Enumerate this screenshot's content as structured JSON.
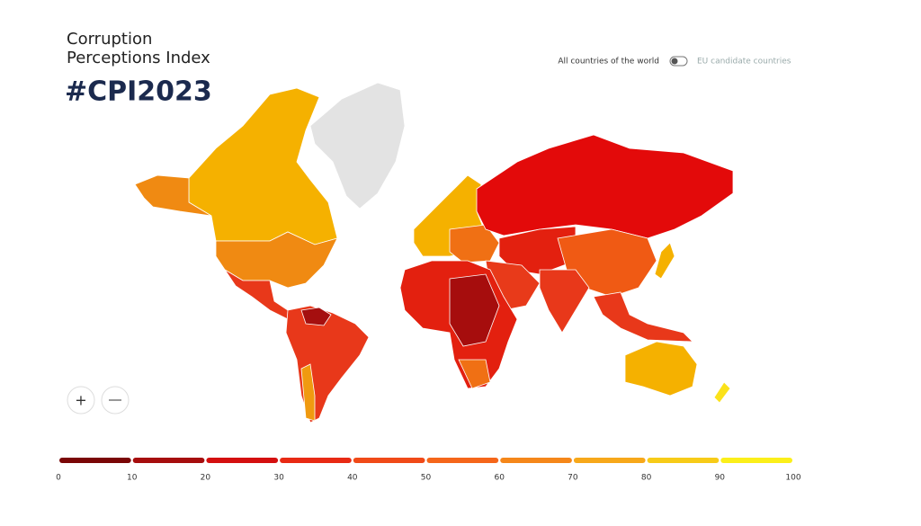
{
  "header": {
    "title_line1": "Corruption",
    "title_line2": "Perceptions Index",
    "logo": "#CPI2023"
  },
  "toggle": {
    "left_label": "All countries of the world",
    "right_label": "EU candidate countries"
  },
  "legend": {
    "ticks": [
      0,
      10,
      20,
      30,
      40,
      50,
      60,
      70,
      80,
      90,
      100
    ],
    "colors": [
      "#7a0606",
      "#a60d0d",
      "#d40f0f",
      "#e82a14",
      "#f04a18",
      "#f5661a",
      "#f5871a",
      "#f7a81a",
      "#f7cb18",
      "#fbef1a"
    ]
  }
}
